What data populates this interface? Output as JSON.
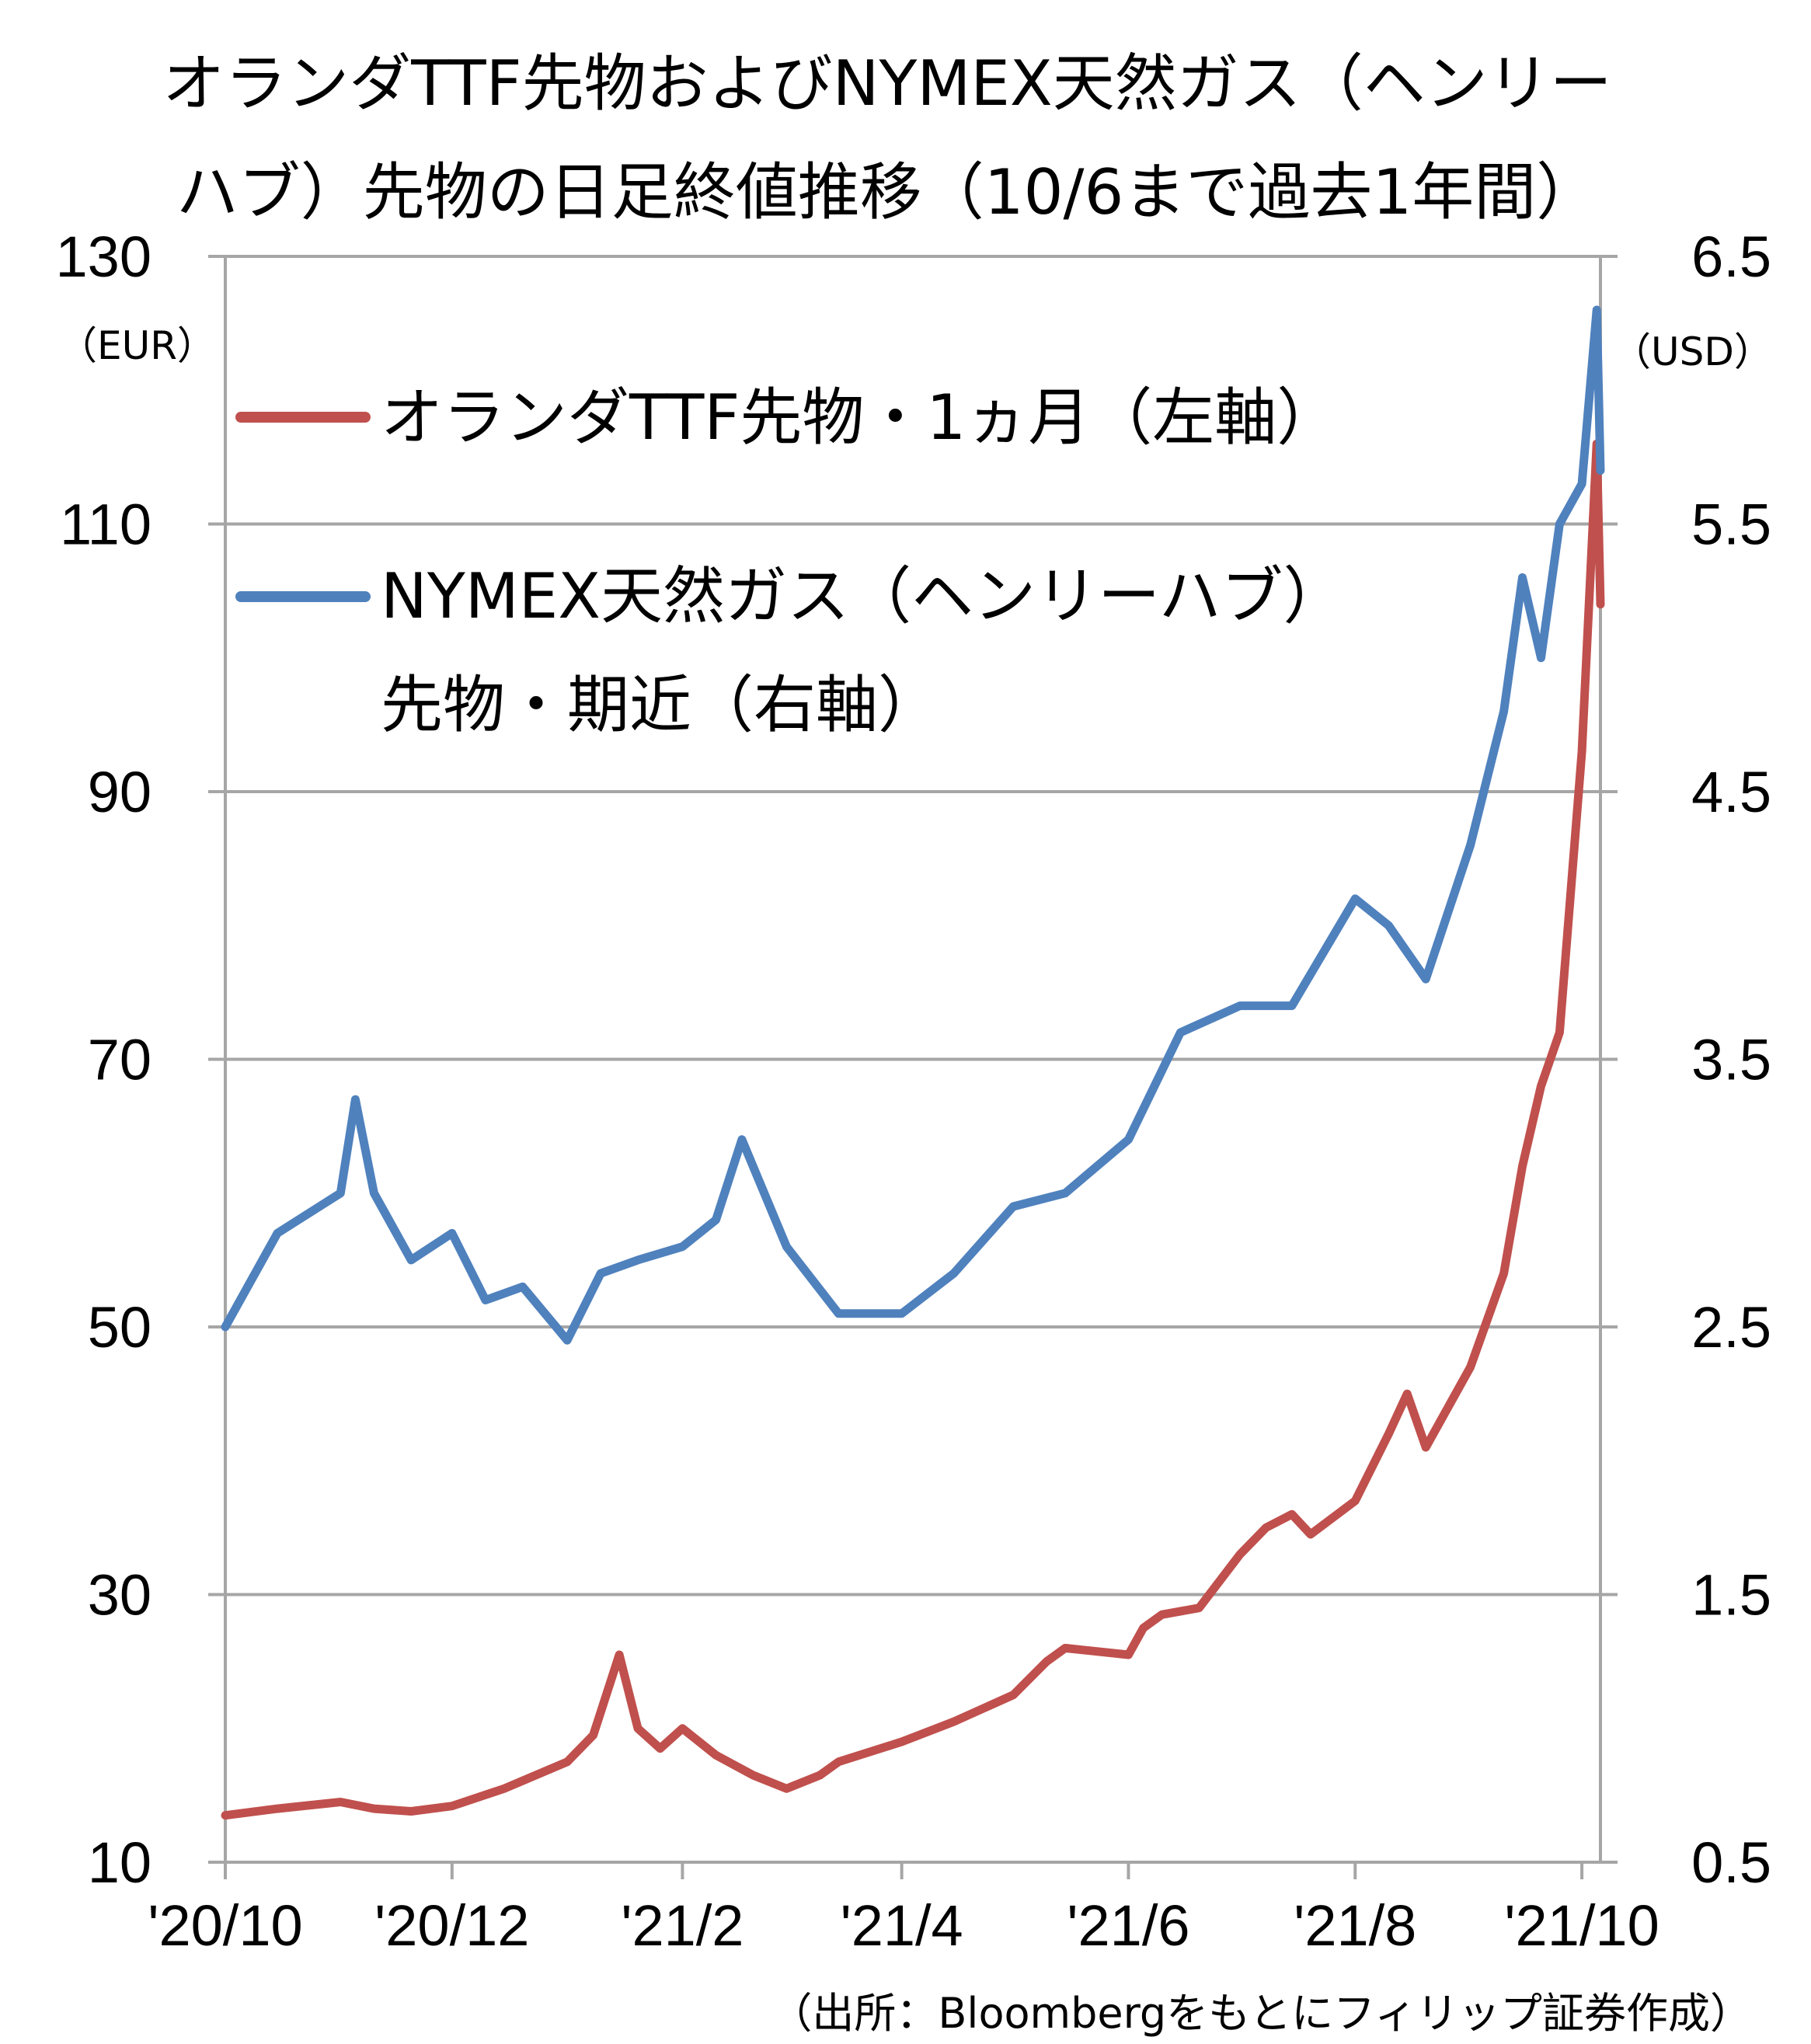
{
  "chart_data": {
    "type": "line",
    "title_line1": "オランダTTF先物およびNYMEX天然ガス（ヘンリー",
    "title_line2": "ハブ）先物の日足終値推移（10/6まで過去1年間）",
    "left_axis": {
      "unit": "（EUR）",
      "min": 10,
      "max": 130,
      "ticks": [
        "130",
        "110",
        "90",
        "70",
        "50",
        "30",
        "10"
      ]
    },
    "right_axis": {
      "unit": "（USD）",
      "min": 0.5,
      "max": 6.5,
      "ticks": [
        "6.5",
        "5.5",
        "4.5",
        "3.5",
        "2.5",
        "1.5",
        "0.5"
      ]
    },
    "x_labels": [
      "'20/10",
      "'20/12",
      "'21/2",
      "'21/4",
      "'21/6",
      "'21/8",
      "'21/10"
    ],
    "grid": true,
    "legend_placement": "top-left",
    "series": [
      {
        "name": "オランダTTF先物・1ヵ月（左軸）",
        "axis": "left",
        "color": "#c0504d",
        "x": [
          "2020-10-01",
          "2020-10-15",
          "2020-11-01",
          "2020-11-10",
          "2020-11-20",
          "2020-12-01",
          "2020-12-15",
          "2021-01-01",
          "2021-01-08",
          "2021-01-15",
          "2021-01-20",
          "2021-01-26",
          "2021-02-01",
          "2021-02-10",
          "2021-02-20",
          "2021-03-01",
          "2021-03-10",
          "2021-03-15",
          "2021-04-01",
          "2021-04-15",
          "2021-05-01",
          "2021-05-10",
          "2021-05-15",
          "2021-06-01",
          "2021-06-05",
          "2021-06-10",
          "2021-06-20",
          "2021-07-01",
          "2021-07-08",
          "2021-07-15",
          "2021-07-20",
          "2021-08-01",
          "2021-08-10",
          "2021-08-15",
          "2021-08-20",
          "2021-09-01",
          "2021-09-10",
          "2021-09-15",
          "2021-09-20",
          "2021-09-25",
          "2021-10-01",
          "2021-10-05",
          "2021-10-06"
        ],
        "values": [
          13.5,
          14.0,
          14.5,
          14.0,
          13.8,
          14.2,
          15.5,
          17.5,
          19.5,
          25.5,
          20.0,
          18.5,
          20.0,
          18.0,
          16.5,
          15.5,
          16.5,
          17.5,
          19.0,
          20.5,
          22.5,
          25.0,
          26.0,
          25.5,
          27.5,
          28.5,
          29.0,
          33.0,
          35.0,
          36.0,
          34.5,
          37.0,
          42.0,
          45.0,
          41.0,
          47.0,
          54.0,
          62.0,
          68.0,
          72.0,
          93.0,
          116.0,
          104.0
        ]
      },
      {
        "name": "NYMEX天然ガス（ヘンリーハブ）先物・期近（右軸）",
        "axis": "right",
        "color": "#4f81bd",
        "x": [
          "2020-10-01",
          "2020-10-15",
          "2020-11-01",
          "2020-11-05",
          "2020-11-10",
          "2020-11-20",
          "2020-12-01",
          "2020-12-10",
          "2020-12-20",
          "2021-01-01",
          "2021-01-10",
          "2021-01-20",
          "2021-02-01",
          "2021-02-10",
          "2021-02-17",
          "2021-03-01",
          "2021-03-15",
          "2021-04-01",
          "2021-04-15",
          "2021-05-01",
          "2021-05-15",
          "2021-06-01",
          "2021-06-15",
          "2021-07-01",
          "2021-07-15",
          "2021-08-01",
          "2021-08-10",
          "2021-08-20",
          "2021-09-01",
          "2021-09-10",
          "2021-09-15",
          "2021-09-20",
          "2021-09-25",
          "2021-10-01",
          "2021-10-05",
          "2021-10-06"
        ],
        "values": [
          2.5,
          2.85,
          3.0,
          3.35,
          3.0,
          2.75,
          2.85,
          2.6,
          2.65,
          2.45,
          2.7,
          2.75,
          2.8,
          2.9,
          3.2,
          2.8,
          2.55,
          2.55,
          2.7,
          2.95,
          3.0,
          3.2,
          3.6,
          3.7,
          3.7,
          4.1,
          4.0,
          3.8,
          4.3,
          4.8,
          5.3,
          5.0,
          5.5,
          5.65,
          6.3,
          5.7
        ]
      }
    ],
    "source": "（出所：Bloombergをもとにフィリップ証券作成）"
  }
}
